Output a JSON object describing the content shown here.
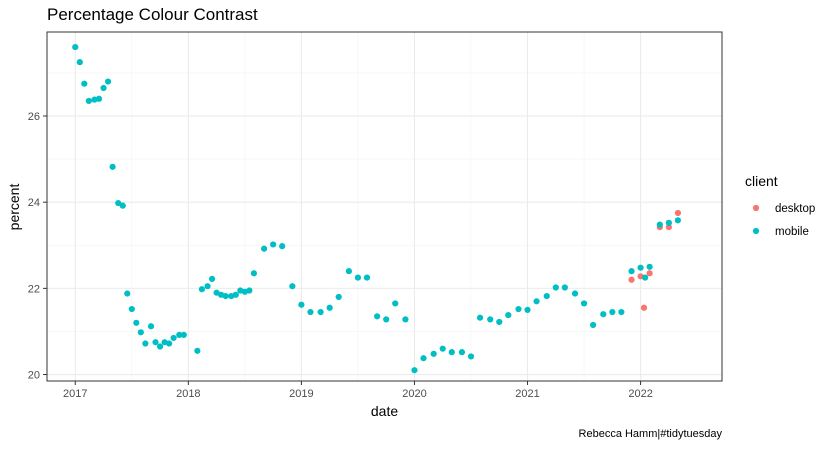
{
  "chart_data": {
    "type": "scatter",
    "title": "Percentage Colour Contrast",
    "xlabel": "date",
    "ylabel": "percent",
    "caption": "Rebecca Hamm|#tidytuesday",
    "xlim": [
      2016.75,
      2022.72
    ],
    "ylim": [
      19.85,
      27.95
    ],
    "x_ticks": [
      2017,
      2018,
      2019,
      2020,
      2021,
      2022
    ],
    "x_tick_labels": [
      "2017",
      "2018",
      "2019",
      "2020",
      "2021",
      "2022"
    ],
    "y_ticks": [
      20,
      22,
      24,
      26
    ],
    "y_tick_labels": [
      "20",
      "22",
      "24",
      "26"
    ],
    "grid": true,
    "legend": {
      "title": "client",
      "position": "right"
    },
    "series": [
      {
        "name": "desktop",
        "color": "#F8766D",
        "x": [
          2021.92,
          2022.0,
          2022.03,
          2022.08,
          2022.17,
          2022.25,
          2022.33
        ],
        "y": [
          22.2,
          22.28,
          21.55,
          22.35,
          23.42,
          23.42,
          23.75
        ]
      },
      {
        "name": "mobile",
        "color": "#00BFC4",
        "x": [
          2017.0,
          2017.04,
          2017.08,
          2017.12,
          2017.17,
          2017.21,
          2017.25,
          2017.29,
          2017.33,
          2017.38,
          2017.42,
          2017.46,
          2017.5,
          2017.54,
          2017.58,
          2017.62,
          2017.67,
          2017.71,
          2017.75,
          2017.79,
          2017.83,
          2017.87,
          2017.92,
          2017.96,
          2018.08,
          2018.12,
          2018.17,
          2018.21,
          2018.25,
          2018.29,
          2018.33,
          2018.38,
          2018.42,
          2018.46,
          2018.5,
          2018.54,
          2018.58,
          2018.67,
          2018.75,
          2018.83,
          2018.92,
          2019.0,
          2019.08,
          2019.17,
          2019.25,
          2019.33,
          2019.42,
          2019.5,
          2019.58,
          2019.67,
          2019.75,
          2019.83,
          2019.92,
          2020.0,
          2020.08,
          2020.17,
          2020.25,
          2020.33,
          2020.42,
          2020.5,
          2020.58,
          2020.67,
          2020.75,
          2020.83,
          2020.92,
          2021.0,
          2021.08,
          2021.17,
          2021.25,
          2021.33,
          2021.42,
          2021.5,
          2021.58,
          2021.67,
          2021.75,
          2021.83,
          2021.92,
          2022.0,
          2022.04,
          2022.08,
          2022.17,
          2022.25,
          2022.33
        ],
        "y": [
          27.6,
          27.25,
          26.75,
          26.35,
          26.38,
          26.4,
          26.65,
          26.8,
          24.82,
          23.98,
          23.92,
          21.88,
          21.52,
          21.2,
          20.98,
          20.72,
          21.12,
          20.75,
          20.65,
          20.75,
          20.72,
          20.85,
          20.92,
          20.92,
          20.55,
          21.98,
          22.05,
          22.22,
          21.9,
          21.85,
          21.82,
          21.82,
          21.85,
          21.95,
          21.92,
          21.95,
          22.35,
          22.92,
          23.02,
          22.98,
          22.05,
          21.62,
          21.45,
          21.45,
          21.55,
          21.8,
          22.4,
          22.25,
          22.25,
          21.35,
          21.28,
          21.65,
          21.28,
          20.1,
          20.38,
          20.48,
          20.6,
          20.52,
          20.52,
          20.42,
          21.32,
          21.28,
          21.22,
          21.38,
          21.52,
          21.5,
          21.7,
          21.82,
          22.02,
          22.02,
          21.88,
          21.65,
          21.15,
          21.4,
          21.45,
          21.45,
          22.4,
          22.48,
          22.25,
          22.5,
          23.48,
          23.52,
          23.58
        ]
      }
    ]
  }
}
